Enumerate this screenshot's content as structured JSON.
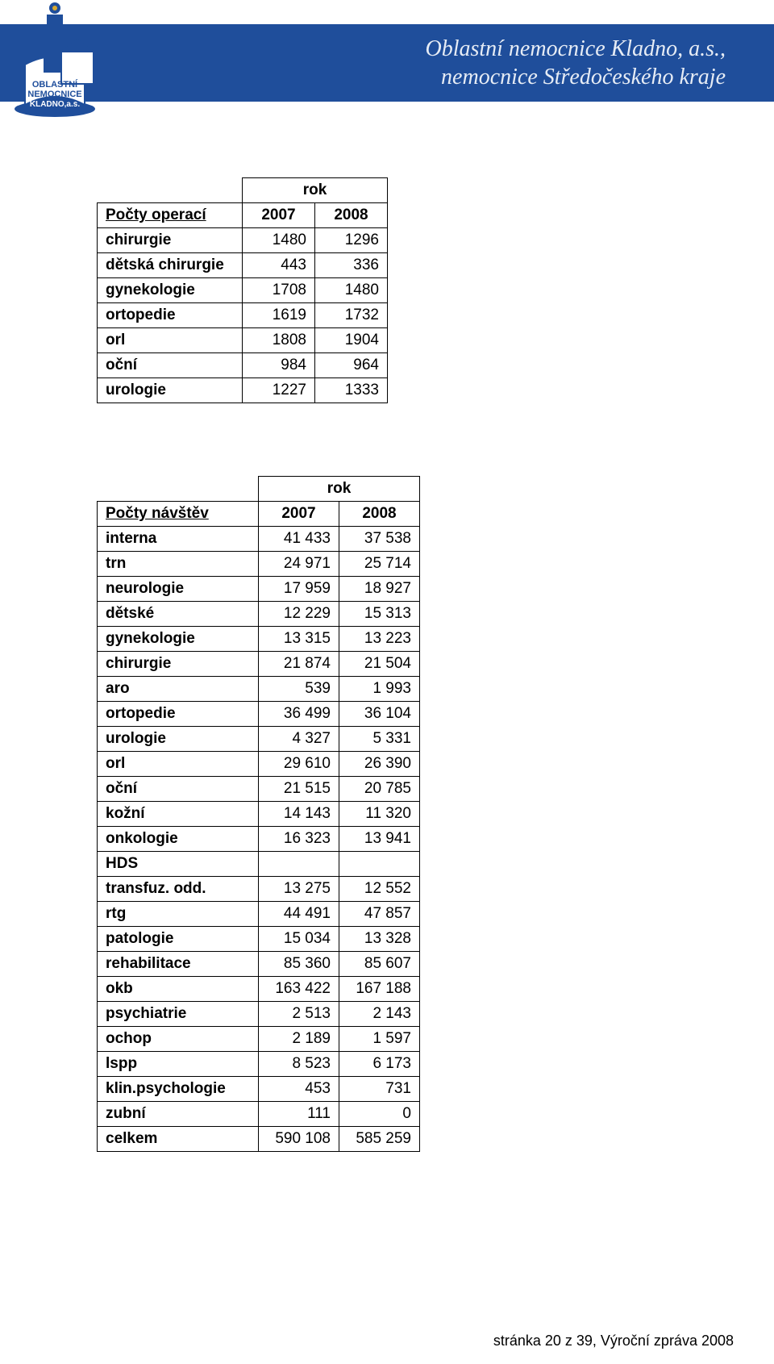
{
  "header": {
    "line1": "Oblastní nemocnice Kladno, a.s.,",
    "line2": "nemocnice Středočeského kraje",
    "logo_primary": "#1f4e9b",
    "logo_accent": "#d8a92f"
  },
  "table1": {
    "rok_label": "rok",
    "title": "Počty operací",
    "years": [
      "2007",
      "2008"
    ],
    "rows": [
      {
        "label": "chirurgie",
        "v": [
          "1480",
          "1296"
        ]
      },
      {
        "label": "dětská chirurgie",
        "v": [
          "443",
          "336"
        ]
      },
      {
        "label": "gynekologie",
        "v": [
          "1708",
          "1480"
        ]
      },
      {
        "label": "ortopedie",
        "v": [
          "1619",
          "1732"
        ]
      },
      {
        "label": "orl",
        "v": [
          "1808",
          "1904"
        ]
      },
      {
        "label": "oční",
        "v": [
          "984",
          "964"
        ]
      },
      {
        "label": "urologie",
        "v": [
          "1227",
          "1333"
        ]
      }
    ]
  },
  "table2": {
    "rok_label": "rok",
    "title": "Počty návštěv",
    "years": [
      "2007",
      "2008"
    ],
    "rows": [
      {
        "label": "interna",
        "v": [
          "41 433",
          "37 538"
        ]
      },
      {
        "label": "trn",
        "v": [
          "24 971",
          "25 714"
        ]
      },
      {
        "label": "neurologie",
        "v": [
          "17 959",
          "18 927"
        ]
      },
      {
        "label": "dětské",
        "v": [
          "12 229",
          "15 313"
        ]
      },
      {
        "label": "gynekologie",
        "v": [
          "13 315",
          "13 223"
        ]
      },
      {
        "label": "chirurgie",
        "v": [
          "21 874",
          "21 504"
        ]
      },
      {
        "label": "aro",
        "v": [
          "539",
          "1 993"
        ]
      },
      {
        "label": "ortopedie",
        "v": [
          "36 499",
          "36 104"
        ]
      },
      {
        "label": "urologie",
        "v": [
          "4 327",
          "5 331"
        ]
      },
      {
        "label": "orl",
        "v": [
          "29 610",
          "26 390"
        ]
      },
      {
        "label": "oční",
        "v": [
          "21 515",
          "20 785"
        ]
      },
      {
        "label": "kožní",
        "v": [
          "14 143",
          "11 320"
        ]
      },
      {
        "label": "onkologie",
        "v": [
          "16 323",
          "13 941"
        ]
      },
      {
        "label": "HDS",
        "v": [
          "",
          ""
        ]
      },
      {
        "label": "transfuz. odd.",
        "v": [
          "13 275",
          "12 552"
        ]
      },
      {
        "label": "rtg",
        "v": [
          "44 491",
          "47 857"
        ]
      },
      {
        "label": "patologie",
        "v": [
          "15 034",
          "13 328"
        ]
      },
      {
        "label": "rehabilitace",
        "v": [
          "85 360",
          "85 607"
        ]
      },
      {
        "label": "okb",
        "v": [
          "163 422",
          "167 188"
        ]
      },
      {
        "label": "psychiatrie",
        "v": [
          "2 513",
          "2 143"
        ]
      },
      {
        "label": "ochop",
        "v": [
          "2 189",
          "1 597"
        ]
      },
      {
        "label": "lspp",
        "v": [
          "8 523",
          "6 173"
        ]
      },
      {
        "label": "klin.psychologie",
        "v": [
          "453",
          "731"
        ]
      },
      {
        "label": "zubní",
        "v": [
          "111",
          "0"
        ]
      },
      {
        "label": "celkem",
        "v": [
          "590 108",
          "585 259"
        ]
      }
    ]
  },
  "footer": "stránka 20 z 39, Výroční zpráva 2008"
}
